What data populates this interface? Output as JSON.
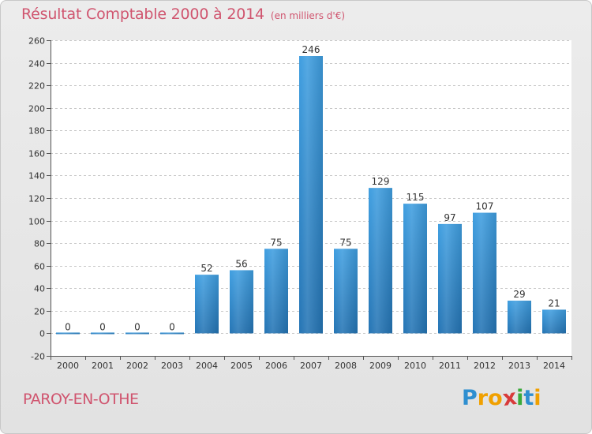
{
  "header": {
    "title": "Résultat Comptable 2000 à 2014",
    "subtitle": "(en milliers d'€)"
  },
  "footer": {
    "commune": "PAROY-EN-OTHE",
    "logo_letters": [
      "P",
      "r",
      "o",
      "x",
      "i",
      "t",
      "i"
    ],
    "logo_colors": [
      "#2f8fd0",
      "#f0a000",
      "#f0a000",
      "#d83a3a",
      "#3aaa3a",
      "#2f8fd0",
      "#f0a000"
    ]
  },
  "chart_data": {
    "type": "bar",
    "title": "Résultat Comptable 2000 à 2014",
    "subtitle": "(en milliers d'€)",
    "xlabel": "",
    "ylabel": "",
    "categories": [
      "2000",
      "2001",
      "2002",
      "2003",
      "2004",
      "2005",
      "2006",
      "2007",
      "2008",
      "2009",
      "2010",
      "2011",
      "2012",
      "2013",
      "2014"
    ],
    "values": [
      0,
      0,
      0,
      0,
      52,
      56,
      75,
      246,
      75,
      129,
      115,
      97,
      107,
      29,
      21
    ],
    "ylim": [
      -20,
      260
    ],
    "yticks": [
      -20,
      0,
      20,
      40,
      60,
      80,
      100,
      120,
      140,
      160,
      180,
      200,
      220,
      240,
      260
    ],
    "grid": true,
    "bar_color": "#3f9ee0",
    "bar_color_dark": "#2474b4"
  }
}
